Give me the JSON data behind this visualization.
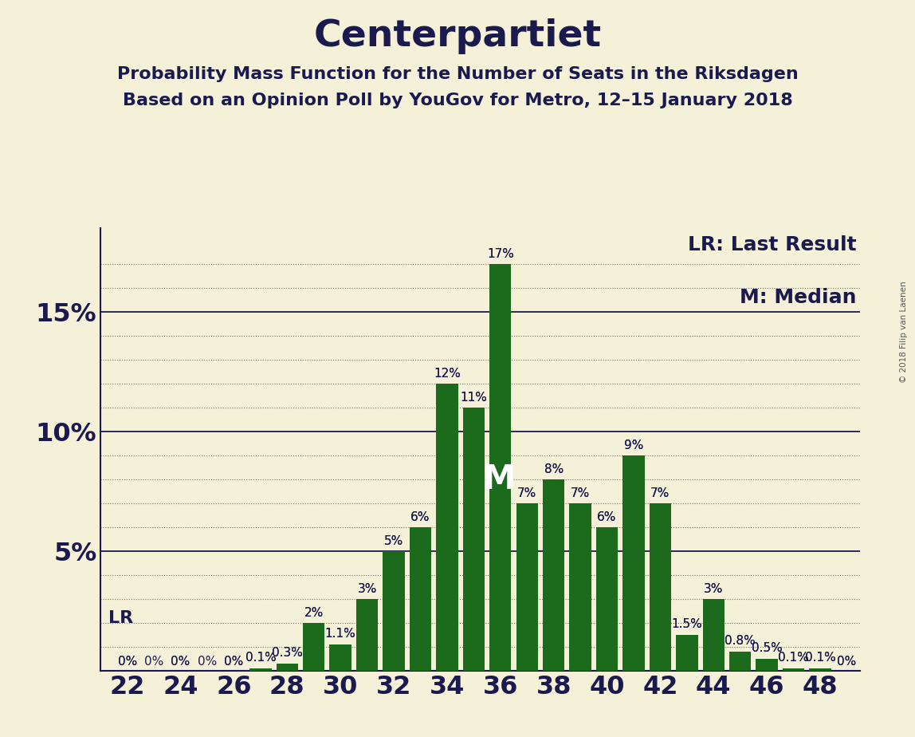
{
  "title": "Centerpartiet",
  "subtitle1": "Probability Mass Function for the Number of Seats in the Riksdagen",
  "subtitle2": "Based on an Opinion Poll by YouGov for Metro, 12–15 January 2018",
  "copyright": "© 2018 Filip van Laenen",
  "seats": [
    22,
    23,
    24,
    25,
    26,
    27,
    28,
    29,
    30,
    31,
    32,
    33,
    34,
    35,
    36,
    37,
    38,
    39,
    40,
    41,
    42,
    43,
    44,
    45,
    46,
    47,
    48,
    49
  ],
  "values": [
    0.0,
    0.0,
    0.0,
    0.0,
    0.0,
    0.1,
    0.3,
    2.0,
    1.1,
    3.0,
    5.0,
    6.0,
    12.0,
    11.0,
    17.0,
    7.0,
    8.0,
    7.0,
    6.0,
    9.0,
    7.0,
    1.5,
    3.0,
    0.8,
    0.5,
    0.1,
    0.1,
    0.0
  ],
  "bar_labels": {
    "22": "0%",
    "23": "0%",
    "24": "0%",
    "25": "0%",
    "26": "0%",
    "27": "0.1%",
    "28": "0.3%",
    "29": "2%",
    "30": "1.1%",
    "31": "3%",
    "32": "5%",
    "33": "6%",
    "34": "12%",
    "35": "11%",
    "36": "17%",
    "37": "7%",
    "38": "8%",
    "39": "7%",
    "40": "6%",
    "41": "9%",
    "42": "7%",
    "43": "1.5%",
    "44": "3%",
    "45": "0.8%",
    "46": "0.5%",
    "47": "0.1%",
    "48": "0.1%",
    "49": "0%"
  },
  "show_labels": [
    true,
    true,
    true,
    true,
    true,
    true,
    true,
    true,
    true,
    true,
    true,
    true,
    true,
    true,
    true,
    true,
    true,
    true,
    true,
    true,
    true,
    true,
    true,
    true,
    true,
    true,
    true,
    true
  ],
  "hide_labels": [
    false,
    false,
    false,
    false,
    false,
    false,
    false,
    false,
    false,
    false,
    false,
    false,
    false,
    false,
    false,
    false,
    false,
    false,
    false,
    false,
    false,
    false,
    false,
    false,
    false,
    false,
    false,
    false
  ],
  "bar_color": "#1c6b1c",
  "background_color": "#f5f0d8",
  "text_color": "#1a1a4e",
  "median_seat": 36,
  "median_label": "M",
  "lr_seat": 22,
  "lr_label": "LR",
  "legend_lr": "LR: Last Result",
  "legend_m": "M: Median",
  "ylim_max": 18.5,
  "xlabel_ticks": [
    22,
    24,
    26,
    28,
    30,
    32,
    34,
    36,
    38,
    40,
    42,
    44,
    46,
    48
  ],
  "ytick_positions": [
    5,
    10,
    15
  ],
  "ytick_labels": [
    "5%",
    "10%",
    "15%"
  ],
  "title_fontsize": 34,
  "subtitle_fontsize": 16,
  "tick_fontsize": 23,
  "bar_label_fontsize": 11,
  "legend_fontsize": 18,
  "lr_fontsize": 16
}
